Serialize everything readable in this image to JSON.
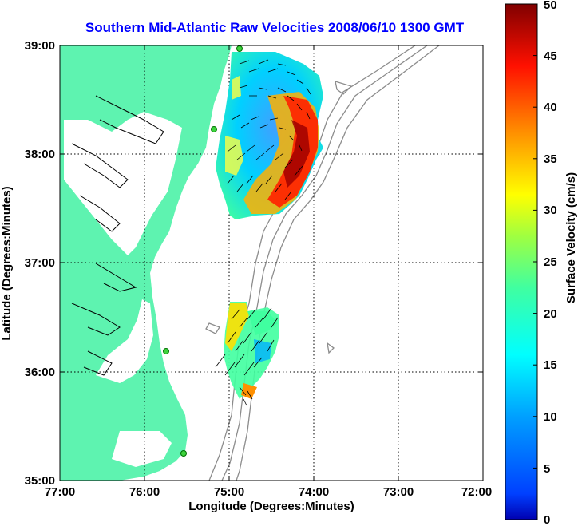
{
  "map": {
    "title": "Southern Mid-Atlantic Raw Velocities 2008/06/10 1300 GMT",
    "xlabel": "Longitude (Degrees:Minutes)",
    "ylabel": "Latitude (Degrees:Minutes)",
    "x_ticks": [
      "77:00",
      "76:00",
      "75:00",
      "74:00",
      "73:00",
      "72:00"
    ],
    "y_ticks": [
      "39:00",
      "38:00",
      "37:00",
      "36:00",
      "35:00"
    ],
    "lon_range": [
      -77,
      -72
    ],
    "lat_range": [
      35,
      39
    ],
    "grid": "dotted",
    "colors": {
      "title": "#0000ff",
      "land": "#5ef3b0",
      "bathymetry_contour": "#8c8c8c",
      "station_marker": "#3cd23c"
    }
  },
  "colorbar": {
    "label": "Surface Velocity (cm/s)",
    "ticks": [
      "0",
      "5",
      "10",
      "15",
      "20",
      "25",
      "30",
      "35",
      "40",
      "45",
      "50"
    ],
    "range": [
      0,
      50
    ],
    "colormap": "jet"
  }
}
